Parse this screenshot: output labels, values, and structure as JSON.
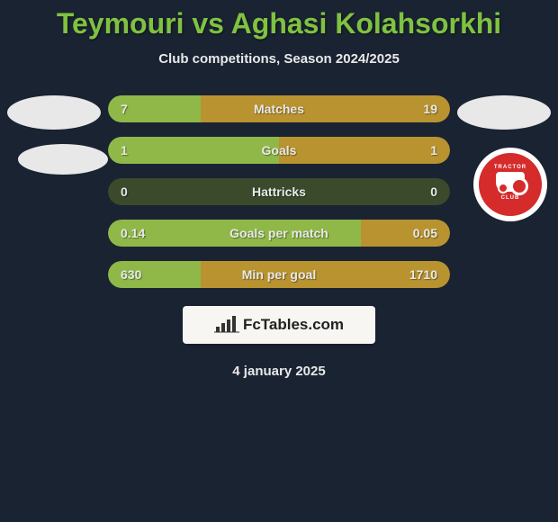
{
  "title": "Teymouri vs Aghasi Kolahsorkhi",
  "subtitle": "Club competitions, Season 2024/2025",
  "date": "4 january 2025",
  "footer_brand": "FcTables.com",
  "colors": {
    "background": "#1a2332",
    "title": "#7fc241",
    "text": "#e8e8e8",
    "bar_base": "#3a4a2a",
    "bar_left": "#8fb848",
    "bar_right": "#b8932f",
    "avatar": "#e8e8e8",
    "club_red": "#d52b2b",
    "footer_bg": "#f8f6f2"
  },
  "club_logo": {
    "top_text": "TRACTOR",
    "bottom_text": "CLUB"
  },
  "stats": [
    {
      "label": "Matches",
      "left_val": "7",
      "right_val": "19",
      "left_pct": 27,
      "right_pct": 73,
      "left_color": "#8fb848",
      "right_color": "#b8932f"
    },
    {
      "label": "Goals",
      "left_val": "1",
      "right_val": "1",
      "left_pct": 50,
      "right_pct": 50,
      "left_color": "#8fb848",
      "right_color": "#b8932f"
    },
    {
      "label": "Hattricks",
      "left_val": "0",
      "right_val": "0",
      "left_pct": 0,
      "right_pct": 0,
      "left_color": "#8fb848",
      "right_color": "#b8932f"
    },
    {
      "label": "Goals per match",
      "left_val": "0.14",
      "right_val": "0.05",
      "left_pct": 74,
      "right_pct": 26,
      "left_color": "#8fb848",
      "right_color": "#b8932f"
    },
    {
      "label": "Min per goal",
      "left_val": "630",
      "right_val": "1710",
      "left_pct": 27,
      "right_pct": 73,
      "left_color": "#8fb848",
      "right_color": "#b8932f"
    }
  ]
}
